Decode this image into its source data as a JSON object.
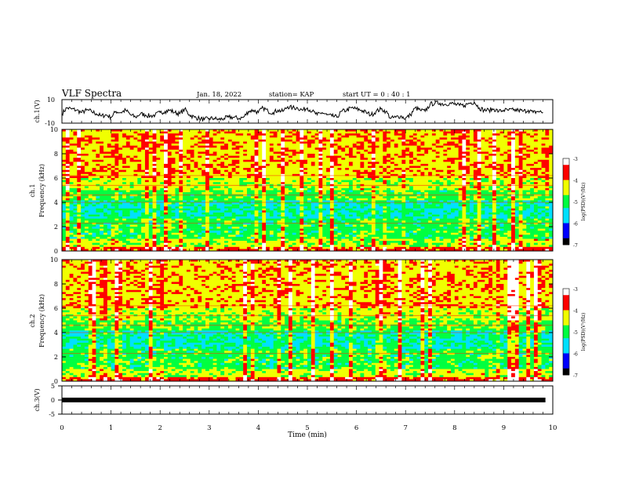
{
  "header": {
    "title": "VLF Spectra",
    "date": "Jan. 18, 2022",
    "station": "station= KAP",
    "start": "start  UT =   0 : 40 : 1"
  },
  "colors": {
    "palette": [
      "#000000",
      "#0000ff",
      "#00e0ff",
      "#00ff40",
      "#f0ff00",
      "#ff0000",
      "#ffffff"
    ],
    "frame": "#000000"
  },
  "chart_data": [
    {
      "type": "line",
      "panel": "ch1-waveform",
      "ylabel": "ch.1(V)",
      "xlim": [
        0,
        10
      ],
      "ylim": [
        -10,
        10
      ],
      "y_ticks": [
        "10",
        "-10"
      ],
      "x": [
        0.0,
        0.1,
        0.2,
        0.3,
        0.4,
        0.5,
        0.6,
        0.7,
        0.8,
        0.9,
        1.0,
        1.1,
        1.2,
        1.3,
        1.4,
        1.5,
        1.6,
        1.7,
        1.8,
        1.9,
        2.0,
        2.1,
        2.2,
        2.3,
        2.4,
        2.5,
        2.6,
        2.7,
        2.8,
        2.9,
        3.0,
        3.1,
        3.2,
        3.3,
        3.4,
        3.5,
        3.6,
        3.7,
        3.8,
        3.9,
        4.0,
        4.1,
        4.2,
        4.3,
        4.4,
        4.5,
        4.6,
        4.7,
        4.8,
        4.9,
        5.0,
        5.1,
        5.2,
        5.3,
        5.4,
        5.5,
        5.6,
        5.7,
        5.8,
        5.9,
        6.0,
        6.1,
        6.2,
        6.3,
        6.4,
        6.5,
        6.6,
        6.7,
        6.8,
        6.9,
        7.0,
        7.1,
        7.2,
        7.3,
        7.4,
        7.5,
        7.6,
        7.7,
        7.8,
        7.9,
        8.0,
        8.1,
        8.2,
        8.3,
        8.4,
        8.5,
        8.6,
        8.7,
        8.8,
        8.9,
        9.0,
        9.1,
        9.2,
        9.3,
        9.4,
        9.5,
        9.6,
        9.7,
        9.8
      ],
      "y": [
        -2,
        3,
        2,
        1,
        -1,
        1,
        0,
        -2,
        -4,
        -3,
        -5,
        0,
        -1,
        1,
        -3,
        -5,
        -2,
        -3,
        -4,
        -3,
        -1,
        0,
        1,
        -1,
        -2,
        2,
        -3,
        -5,
        -6,
        -7,
        -6,
        -6,
        -7,
        -6,
        -5,
        -5,
        -6,
        -5,
        0,
        1,
        -1,
        3,
        0,
        -1,
        1,
        0,
        4,
        3,
        3,
        1,
        3,
        0,
        -3,
        -1,
        -3,
        -4,
        -5,
        0,
        1,
        3,
        2,
        1,
        -1,
        -3,
        0,
        2,
        0,
        -6,
        -5,
        -4,
        -6,
        -3,
        3,
        1,
        0,
        6,
        7,
        7,
        6,
        7,
        6,
        5,
        5,
        7,
        8,
        3,
        1,
        1,
        2,
        0,
        1,
        1,
        1,
        1,
        0,
        1,
        -1,
        0,
        -1
      ]
    },
    {
      "type": "heatmap",
      "panel": "ch1-spectrogram",
      "ylabel": "ch.1\nFrequency (kHz)",
      "xlim": [
        0,
        10
      ],
      "ylim": [
        0,
        10
      ],
      "y_ticks": [
        "0",
        "2",
        "4",
        "6",
        "8",
        "10"
      ],
      "colorbar": {
        "label": "log(PSD)(V²/Hz)",
        "range": [
          -7,
          -3
        ],
        "ticks": [
          "-3",
          "-4",
          "-5",
          "-6",
          "-7"
        ]
      }
    },
    {
      "type": "heatmap",
      "panel": "ch2-spectrogram",
      "ylabel": "ch.2\nFrequency (kHz)",
      "xlim": [
        0,
        10
      ],
      "ylim": [
        0,
        10
      ],
      "y_ticks": [
        "0",
        "2",
        "4",
        "6",
        "8",
        "10"
      ],
      "colorbar": {
        "label": "log(PSD)(V²/Hz)",
        "range": [
          -7,
          -3
        ],
        "ticks": [
          "-3",
          "-4",
          "-5",
          "-6",
          "-7"
        ]
      }
    },
    {
      "type": "line",
      "panel": "ch3-waveform",
      "ylabel": "ch.3(V)",
      "xlim": [
        0,
        10
      ],
      "ylim": [
        -5,
        5
      ],
      "y_ticks": [
        "5",
        "0",
        "-5"
      ],
      "x": [
        0.0,
        9.85
      ],
      "y": [
        0,
        0
      ]
    }
  ],
  "x_axis": {
    "label": "Time (min)",
    "ticks": [
      "0",
      "1",
      "2",
      "3",
      "4",
      "5",
      "6",
      "7",
      "8",
      "9",
      "10"
    ]
  }
}
